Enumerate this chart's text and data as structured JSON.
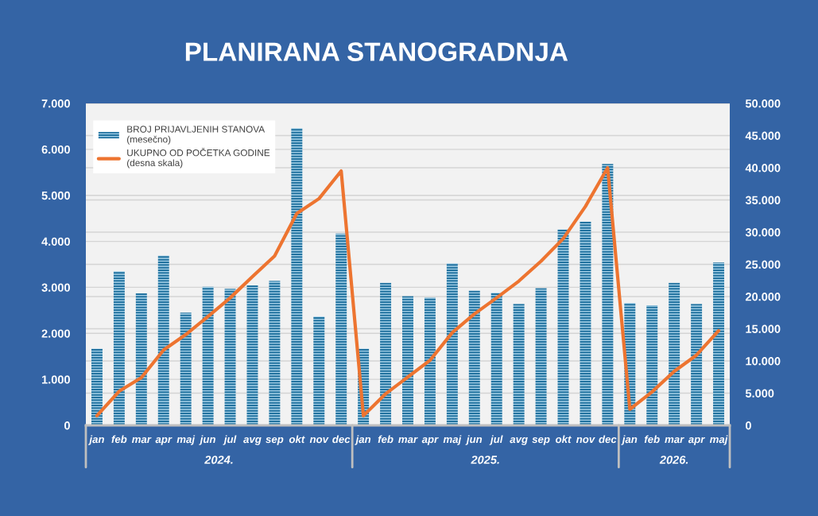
{
  "chart_data": {
    "type": "bar",
    "title": "PLANIRANA STANOGRADNJA",
    "categories": [
      "jan",
      "feb",
      "mar",
      "apr",
      "maj",
      "jun",
      "jul",
      "avg",
      "sep",
      "okt",
      "nov",
      "dec",
      "jan",
      "feb",
      "mar",
      "apr",
      "maj",
      "jun",
      "jul",
      "avg",
      "sep",
      "okt",
      "nov",
      "dec",
      "jan",
      "feb",
      "mar",
      "apr",
      "maj"
    ],
    "series": [
      {
        "name": "BROJ PRIJAVLJENIH STANOVA\n(mesečno)",
        "color": "#21729f",
        "values": [
          1670,
          3350,
          2870,
          3690,
          2450,
          3010,
          2970,
          3040,
          3140,
          6460,
          2370,
          4170,
          1670,
          3100,
          2810,
          2780,
          3520,
          2930,
          2880,
          2640,
          2980,
          4260,
          4430,
          5680,
          2660,
          2610,
          3100,
          2640,
          3540
        ]
      },
      {
        "name": "UKUPNO OD POČETKA GODINE\n(desna skala)",
        "type": "line",
        "axis": "y2",
        "color": "#ed7430",
        "values": [
          1500,
          5300,
          7400,
          11700,
          14100,
          16900,
          19800,
          23100,
          26300,
          32900,
          35200,
          39500,
          1500,
          4900,
          7500,
          10100,
          14400,
          17300,
          19800,
          22400,
          25500,
          29000,
          34000,
          40000,
          2500,
          5200,
          8400,
          10900,
          14700
        ]
      }
    ],
    "ylim": [
      0,
      7000
    ],
    "yticks": [
      0,
      {
        "value": 1000,
        "label": "1.000"
      },
      {
        "value": 2000,
        "label": "2.000"
      },
      {
        "value": 3000,
        "label": "3.000"
      },
      {
        "value": 4000,
        "label": "4.000"
      },
      {
        "value": 5000,
        "label": "5.000"
      },
      {
        "value": 6000,
        "label": "6.000"
      },
      {
        "value": 7000,
        "label": "7.000"
      }
    ],
    "y2lim": [
      0,
      50000
    ],
    "y2ticks": [
      0,
      {
        "value": 5000,
        "label": "5.000"
      },
      {
        "value": 10000,
        "label": "10.000"
      },
      {
        "value": 15000,
        "label": "15.000"
      },
      {
        "value": 20000,
        "label": "20.000"
      },
      {
        "value": 25000,
        "label": "25.000"
      },
      {
        "value": 30000,
        "label": "30.000"
      },
      {
        "value": 35000,
        "label": "35.000"
      },
      {
        "value": 40000,
        "label": "40.000"
      },
      {
        "value": 45000,
        "label": "45.000"
      },
      {
        "value": 50000,
        "label": "50.000"
      }
    ],
    "annotations": [
      "2024.",
      "2025.",
      "2026."
    ],
    "grid": true,
    "legend": "top left",
    "line_style": "solid"
  }
}
